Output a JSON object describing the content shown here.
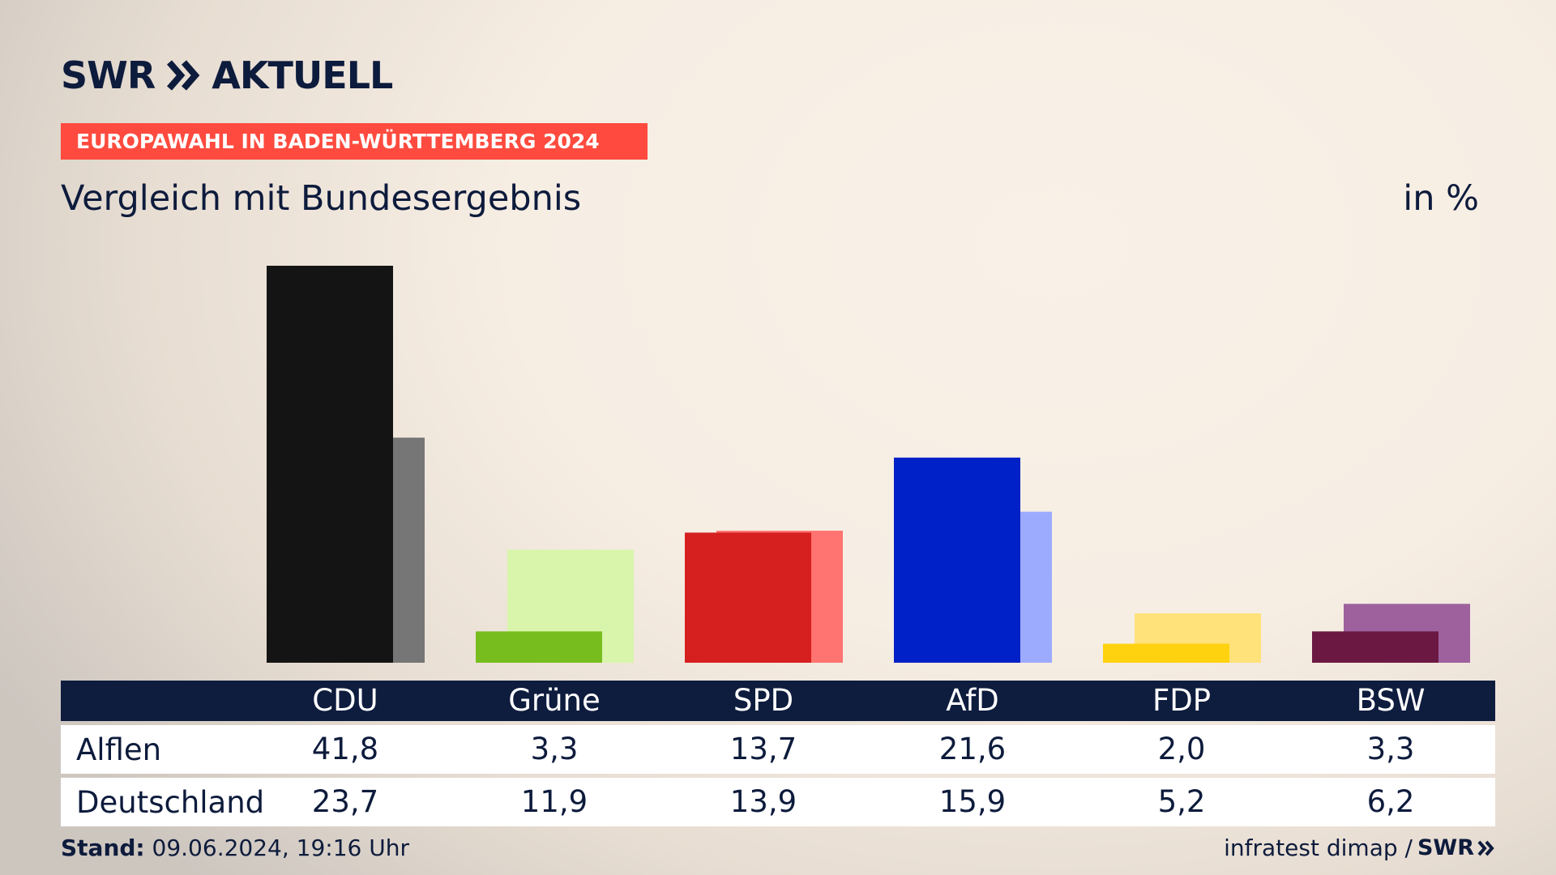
{
  "header": {
    "logo_text": "SWR",
    "logo_suffix": "AKTUELL",
    "badge": "EUROPAWAHL IN BADEN-WÜRTTEMBERG 2024",
    "title": "Vergleich mit Bundesergebnis",
    "unit": "in %"
  },
  "table": {
    "rows": [
      {
        "label": "Alflen",
        "values": [
          "41,8",
          "3,3",
          "13,7",
          "21,6",
          "2,0",
          "3,3"
        ]
      },
      {
        "label": "Deutschland",
        "values": [
          "23,7",
          "11,9",
          "13,9",
          "15,9",
          "5,2",
          "6,2"
        ]
      }
    ]
  },
  "footer": {
    "stand_label": "Stand:",
    "stand_value": "09.06.2024, 19:16 Uhr",
    "source": "infratest dimap /",
    "source_logo": "SWR"
  },
  "chart_data": {
    "type": "bar",
    "categories": [
      "CDU",
      "Grüne",
      "SPD",
      "AfD",
      "FDP",
      "BSW"
    ],
    "series": [
      {
        "name": "Alflen",
        "values": [
          41.8,
          3.3,
          13.7,
          21.6,
          2.0,
          3.3
        ]
      },
      {
        "name": "Deutschland",
        "values": [
          23.7,
          11.9,
          13.9,
          15.9,
          5.2,
          6.2
        ]
      }
    ],
    "colors": {
      "Alflen": [
        "#141414",
        "#78bd1e",
        "#d61f1f",
        "#0021c7",
        "#ffd20f",
        "#6b1942"
      ],
      "Deutschland": [
        "#767676",
        "#d8f5ab",
        "#ff7370",
        "#9dabff",
        "#ffe27a",
        "#9e619e"
      ]
    },
    "ylim": [
      0,
      41.8
    ],
    "grid": false,
    "legend": "table-below"
  }
}
